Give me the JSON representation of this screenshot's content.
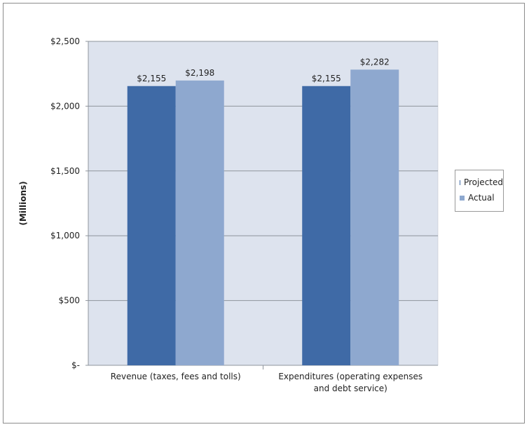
{
  "chart_data": {
    "type": "bar",
    "categories": [
      "Revenue (taxes, fees and tolls)",
      "Expenditures (operating expenses and debt service)"
    ],
    "category_lines": [
      [
        "Revenue (taxes, fees and tolls)"
      ],
      [
        "Expenditures (operating expenses",
        "and debt service)"
      ]
    ],
    "series": [
      {
        "name": "Projected",
        "values": [
          2155,
          2155
        ],
        "labels": [
          "$2,155",
          "$2,155"
        ],
        "color": "#3f6aa6"
      },
      {
        "name": "Actual",
        "values": [
          2198,
          2282
        ],
        "labels": [
          "$2,198",
          "$2,282"
        ],
        "color": "#8ea8cf"
      }
    ],
    "ylabel": "(Millions)",
    "ylim": [
      0,
      2500
    ],
    "yticks": [
      0,
      500,
      1000,
      1500,
      2000,
      2500
    ],
    "ytick_labels": [
      "$-",
      "$500",
      "$1,000",
      "$1,500",
      "$2,000",
      "$2,500"
    ],
    "grid": true,
    "legend_position": "right",
    "plot_background": "#dde3ee"
  }
}
